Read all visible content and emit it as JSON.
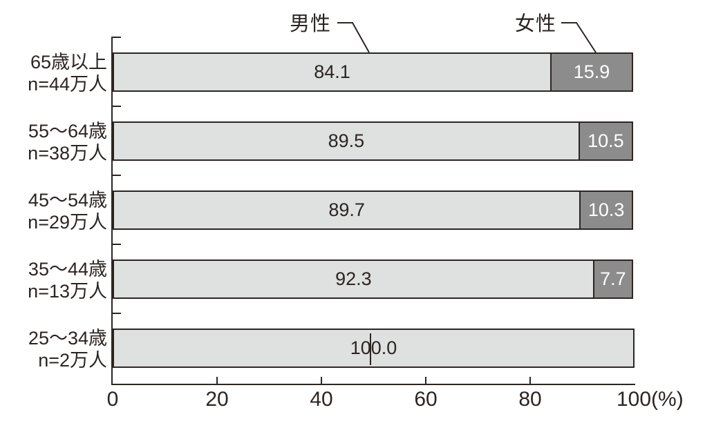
{
  "legend": {
    "male": "男性",
    "female": "女性"
  },
  "axis": {
    "tick_labels": [
      "0",
      "20",
      "40",
      "60",
      "80",
      "100(%)"
    ]
  },
  "rows": [
    {
      "label1": "65歳以上",
      "label2": "n=44万人",
      "male_label": "84.1",
      "female_label": "15.9",
      "male_w": 84.1,
      "female_w": 15.9
    },
    {
      "label1": "55～64歳",
      "label2": "n=38万人",
      "male_label": "89.5",
      "female_label": "10.5",
      "male_w": 89.5,
      "female_w": 10.5
    },
    {
      "label1": "45～54歳",
      "label2": "n=29万人",
      "male_label": "89.7",
      "female_label": "10.3",
      "male_w": 89.7,
      "female_w": 10.3
    },
    {
      "label1": "35～44歳",
      "label2": "n=13万人",
      "male_label": "92.3",
      "female_label": "7.7",
      "male_w": 92.3,
      "female_w": 7.7
    },
    {
      "label1": "25～34歳",
      "label2": "n=2万人",
      "male_label": "100.0",
      "female_label": null,
      "male_w": 100.0,
      "female_w": 0
    }
  ],
  "chart_data": {
    "type": "bar",
    "orientation": "horizontal",
    "stacked": true,
    "unit": "%",
    "categories": [
      "65歳以上 n=44万人",
      "55～64歳 n=38万人",
      "45～54歳 n=29万人",
      "35～44歳 n=13万人",
      "25～34歳 n=2万人"
    ],
    "series": [
      {
        "name": "男性",
        "values": [
          84.1,
          89.5,
          89.7,
          92.3,
          100.0
        ]
      },
      {
        "name": "女性",
        "values": [
          15.9,
          10.5,
          10.3,
          7.7,
          0.0
        ]
      }
    ],
    "xlim": [
      0,
      100
    ],
    "x_ticks": [
      0,
      20,
      40,
      60,
      80,
      100
    ],
    "grid": false,
    "legend_position": "top, with leader lines pointing to first bar segments",
    "colors": {
      "male_fill": "#dfe0e0",
      "female_fill": "#8c8c8c",
      "line": "#2b2522",
      "female_text": "#ffffff"
    }
  }
}
